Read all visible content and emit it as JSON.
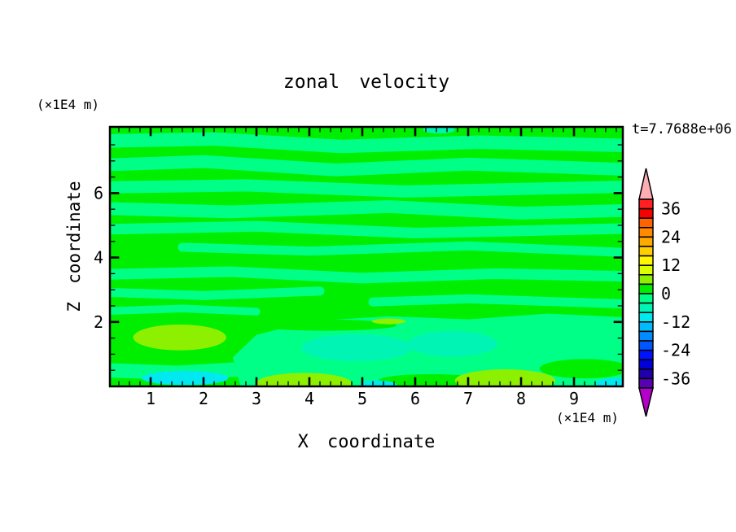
{
  "title": "zonal velocity",
  "time_label": "t=7.7688e+06",
  "axes": {
    "x_label": "X coordinate",
    "x_unit_label": "(×1E4 m)",
    "z_label": "Z coordinate",
    "z_unit_label": "(×1E4 m)",
    "x_ticks": [
      1,
      2,
      3,
      4,
      5,
      6,
      7,
      8,
      9
    ],
    "z_ticks": [
      2,
      4,
      6
    ],
    "x_minor_step": 0.2,
    "z_minor_step": 0.5,
    "x_range": [
      0.2,
      9.9
    ],
    "z_range": [
      0,
      8
    ]
  },
  "colorbar": {
    "max": 40,
    "min": -40,
    "step": 4,
    "tick_labels": [
      36,
      24,
      12,
      0,
      -12,
      -24,
      -36
    ],
    "colors_top_to_bottom": [
      "#FF2121",
      "#F60000",
      "#FF6300",
      "#FF8A00",
      "#FFAA00",
      "#FFCE00",
      "#FFF600",
      "#DCFF00",
      "#8CF000",
      "#00EE00",
      "#00FF87",
      "#00F5B4",
      "#00E8F0",
      "#00BCFF",
      "#008CFF",
      "#0057FF",
      "#0013FF",
      "#0000D8",
      "#2000A8",
      "#5A00B4"
    ],
    "over_color": "#FFADB5",
    "under_color": "#B400C8"
  },
  "palette": {
    "green": "#00EE00",
    "spring": "#00FF87",
    "chartreuse": "#8CF000",
    "turquoise": "#00F5B4",
    "cyan": "#00E8F0"
  },
  "chart_data": {
    "type": "heatmap",
    "title": "zonal velocity",
    "xlabel": "X coordinate (×1E4 m)",
    "ylabel": "Z coordinate (×1E4 m)",
    "time": "t=7.7688e+06",
    "x_range": [
      0.2,
      9.9
    ],
    "z_range": [
      0,
      8
    ],
    "levels": {
      "min": -40,
      "max": 40,
      "step": 4
    },
    "field_summary": "Filled contour field of zonal velocity; values mostly between -12 and 12: alternating horizontal bands of 0..4 (green) and -4..0 (spring green), chartreuse (4..8) patches near z=1.5 x=1.5 and along the bottom near x=4 and x=7.7, turquoise (-8..-4) cores near x=4.9 and x=6.7 at z=1.2, small cyan (-12..-8) spots along the bottom boundary",
    "features": {
      "base_color": "green",
      "spring_bands": [
        {
          "pts": [
            [
              0.2,
              7.62
            ],
            [
              2.2,
              7.68
            ],
            [
              4.6,
              7.45
            ],
            [
              7.2,
              7.58
            ],
            [
              9.95,
              7.48
            ]
          ],
          "th": 0.42
        },
        {
          "pts": [
            [
              0.2,
              6.88
            ],
            [
              2.0,
              6.98
            ],
            [
              4.5,
              6.72
            ],
            [
              7.0,
              6.9
            ],
            [
              9.95,
              6.74
            ]
          ],
          "th": 0.4
        },
        {
          "pts": [
            [
              0.2,
              6.18
            ],
            [
              2.8,
              6.24
            ],
            [
              5.8,
              6.05
            ],
            [
              9.95,
              6.2
            ]
          ],
          "th": 0.38
        },
        {
          "pts": [
            [
              0.2,
              5.52
            ],
            [
              2.5,
              5.42
            ],
            [
              5.5,
              5.58
            ],
            [
              8.0,
              5.38
            ],
            [
              9.95,
              5.46
            ]
          ],
          "th": 0.4
        },
        {
          "pts": [
            [
              0.2,
              4.88
            ],
            [
              3.0,
              4.97
            ],
            [
              6.0,
              4.76
            ],
            [
              9.95,
              4.9
            ]
          ],
          "th": 0.33
        },
        {
          "pts": [
            [
              1.6,
              4.32
            ],
            [
              4.0,
              4.2
            ],
            [
              7.0,
              4.36
            ],
            [
              9.95,
              4.16
            ]
          ],
          "th": 0.28
        },
        {
          "pts": [
            [
              0.2,
              3.48
            ],
            [
              2.5,
              3.56
            ],
            [
              5.0,
              3.36
            ],
            [
              7.5,
              3.5
            ],
            [
              9.95,
              3.42
            ]
          ],
          "th": 0.33
        },
        {
          "pts": [
            [
              0.2,
              2.92
            ],
            [
              2.0,
              2.82
            ],
            [
              4.2,
              2.96
            ]
          ],
          "th": 0.28
        },
        {
          "pts": [
            [
              5.2,
              2.62
            ],
            [
              7.0,
              2.72
            ],
            [
              9.95,
              2.56
            ]
          ],
          "th": 0.28
        },
        {
          "pts": [
            [
              0.2,
              2.34
            ],
            [
              1.6,
              2.42
            ],
            [
              3.0,
              2.32
            ]
          ],
          "th": 0.24
        },
        {
          "pts": [
            [
              0.2,
              0.5
            ],
            [
              1.5,
              0.42
            ],
            [
              2.9,
              0.55
            ]
          ],
          "th": 0.45
        }
      ],
      "spring_regions": [
        [
          [
            2.7,
            0
          ],
          [
            2.55,
            0.9
          ],
          [
            3.0,
            1.6
          ],
          [
            4.0,
            2.02
          ],
          [
            5.5,
            2.18
          ],
          [
            7.0,
            2.08
          ],
          [
            8.5,
            2.26
          ],
          [
            9.95,
            2.15
          ],
          [
            9.95,
            0
          ]
        ]
      ],
      "green_streaks": [
        {
          "cx": 4.3,
          "cz": 1.9,
          "rx": 1.35,
          "rz": 0.17
        },
        {
          "cx": 9.2,
          "cz": 0.55,
          "rx": 0.85,
          "rz": 0.3
        },
        {
          "cx": 6.3,
          "cz": 0.18,
          "rx": 1.0,
          "rz": 0.2
        }
      ],
      "blobs": [
        {
          "color": "chartreuse",
          "cx": 1.55,
          "cz": 1.52,
          "rx": 0.88,
          "rz": 0.4
        },
        {
          "color": "chartreuse",
          "cx": 3.9,
          "cz": 0.1,
          "rx": 0.9,
          "rz": 0.32
        },
        {
          "color": "chartreuse",
          "cx": 7.7,
          "cz": 0.18,
          "rx": 0.95,
          "rz": 0.35
        },
        {
          "color": "chartreuse",
          "cx": 5.5,
          "cz": 2.02,
          "rx": 0.32,
          "rz": 0.09
        },
        {
          "color": "turquoise",
          "cx": 4.9,
          "cz": 1.2,
          "rx": 1.05,
          "rz": 0.42
        },
        {
          "color": "turquoise",
          "cx": 6.7,
          "cz": 1.32,
          "rx": 0.85,
          "rz": 0.4
        },
        {
          "color": "turquoise",
          "cx": 6.45,
          "cz": 7.97,
          "rx": 0.3,
          "rz": 0.12
        },
        {
          "color": "cyan",
          "cx": 1.65,
          "cz": 0.26,
          "rx": 0.82,
          "rz": 0.22
        },
        {
          "color": "cyan",
          "cx": 5.3,
          "cz": 0.05,
          "rx": 0.35,
          "rz": 0.13
        },
        {
          "color": "cyan",
          "cx": 9.82,
          "cz": 0.08,
          "rx": 0.42,
          "rz": 0.18
        }
      ]
    }
  }
}
